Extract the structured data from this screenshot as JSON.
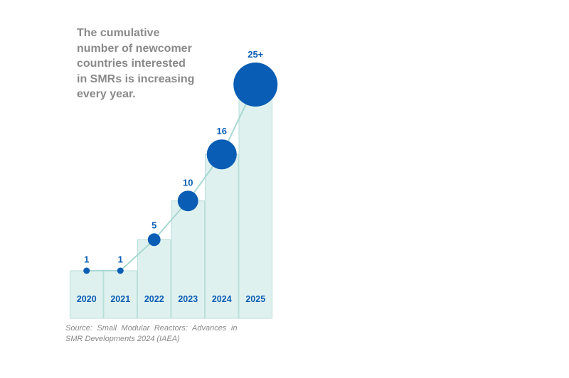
{
  "colors": {
    "bar_fill": "#dff1ef",
    "bar_stroke": "#b9dfdb",
    "bubble": "#0a5db4",
    "connector": "#a8d8d2",
    "label": "#0a5db4",
    "title": "#8a8a8a"
  },
  "chart_data": {
    "type": "bar",
    "title_lines": [
      "The cumulative",
      "number of newcomer",
      "countries interested",
      "in SMRs is increasing",
      "every year."
    ],
    "categories": [
      "2020",
      "2021",
      "2022",
      "2023",
      "2024",
      "2025"
    ],
    "values": [
      1,
      1,
      5,
      10,
      16,
      25
    ],
    "data_labels": [
      "1",
      "1",
      "5",
      "10",
      "16",
      "25+"
    ],
    "overlay": "bubbles sized by value, connected by a line",
    "xlabel": "",
    "ylabel": "",
    "ylim": [
      0,
      25
    ],
    "grid": false,
    "legend": "none"
  },
  "source": {
    "line1": "Source: Small Modular Reactors: Advances in",
    "line2": "SMR Developments 2024 (IAEA)"
  }
}
